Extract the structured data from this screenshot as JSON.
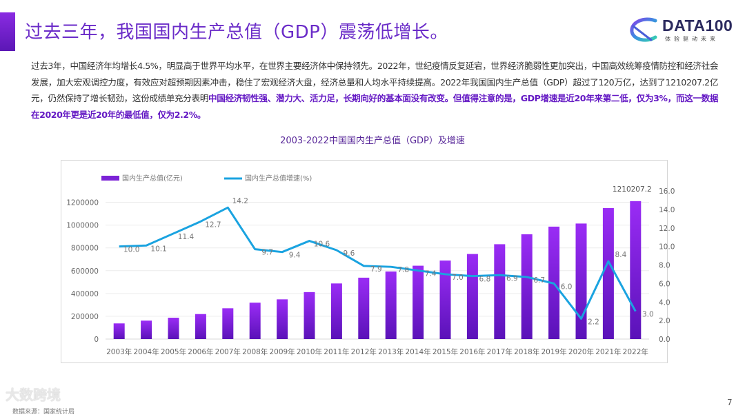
{
  "header": {
    "title": "过去三年，我国国内生产总值（GDP）震荡低增长。",
    "logo_text": "DATA100",
    "logo_subtitle": "体验驱动未来"
  },
  "paragraph": {
    "normal": "过去3年，中国经济年均增长4.5%，明显高于世界平均水平，在世界主要经济体中保持领先。2022年，世纪疫情反复延宕，世界经济脆弱性更加突出，中国高效统筹疫情防控和经济社会发展，加大宏观调控力度，有效应对超预期因素冲击，稳住了宏观经济大盘，经济总量和人均水平持续提高。2022年我国国内生产总值（GDP）超过了120万亿，达到了1210207.2亿元，仍然保持了增长韧劲，这份成绩单充分表明",
    "highlight": "中国经济韧性强、潜力大、活力足，长期向好的基本面没有改变。但值得注意的是，GDP增速是近20年来第二低，仅为3%，而这一数据在2020年更是近20年的最低值，仅为2.2%。"
  },
  "chart_data": {
    "type": "bar+line",
    "title": "2003-2022中国国内生产总值（GDP）及增速",
    "categories": [
      "2003年",
      "2004年",
      "2005年",
      "2006年",
      "2007年",
      "2008年",
      "2009年",
      "2010年",
      "2011年",
      "2012年",
      "2013年",
      "2014年",
      "2015年",
      "2016年",
      "2017年",
      "2018年",
      "2019年",
      "2020年",
      "2021年",
      "2022年"
    ],
    "series": [
      {
        "name": "国内生产总值(亿元)",
        "type": "bar",
        "axis": "left",
        "color": "#7b22d6",
        "values": [
          137422,
          161840,
          187319,
          219438,
          270092,
          319245,
          348518,
          412119,
          487940,
          538580,
          592963,
          643563,
          688858,
          746395,
          832036,
          919281,
          986515,
          1013567,
          1149237,
          1210207.2
        ],
        "data_labels": {
          "19": "1210207.2"
        }
      },
      {
        "name": "国内生产总值增速(%)",
        "type": "line",
        "axis": "right",
        "color": "#1aa3e0",
        "values": [
          10.0,
          10.1,
          11.4,
          12.7,
          14.2,
          9.7,
          9.4,
          10.6,
          9.6,
          7.9,
          7.8,
          7.4,
          7.0,
          6.8,
          6.9,
          6.7,
          6.0,
          2.2,
          8.4,
          3.0
        ],
        "data_labels": [
          "10.0",
          "10.1",
          "11.4",
          "12.7",
          "14.2",
          "9.7",
          "9.4",
          "10.6",
          "9.6",
          "7.9",
          "7.8",
          "7.4",
          "7.0",
          "6.8",
          "6.9",
          "6.7",
          "6.0",
          "2.2",
          "8.4",
          "3.0"
        ]
      }
    ],
    "left_axis": {
      "ylim": [
        0,
        1300000
      ],
      "ticks": [
        "0",
        "200000",
        "400000",
        "600000",
        "800000",
        "1000000",
        "1200000"
      ]
    },
    "right_axis": {
      "ylim": [
        0,
        16
      ],
      "ticks": [
        "0.0",
        "2.0",
        "4.0",
        "6.0",
        "8.0",
        "10.0",
        "12.0",
        "14.0",
        "16.0"
      ]
    },
    "grid": true,
    "legend": "top-left"
  },
  "footer": {
    "page_number": "7",
    "watermark": "大数跨境",
    "source": "数据来源：国家统计局"
  }
}
